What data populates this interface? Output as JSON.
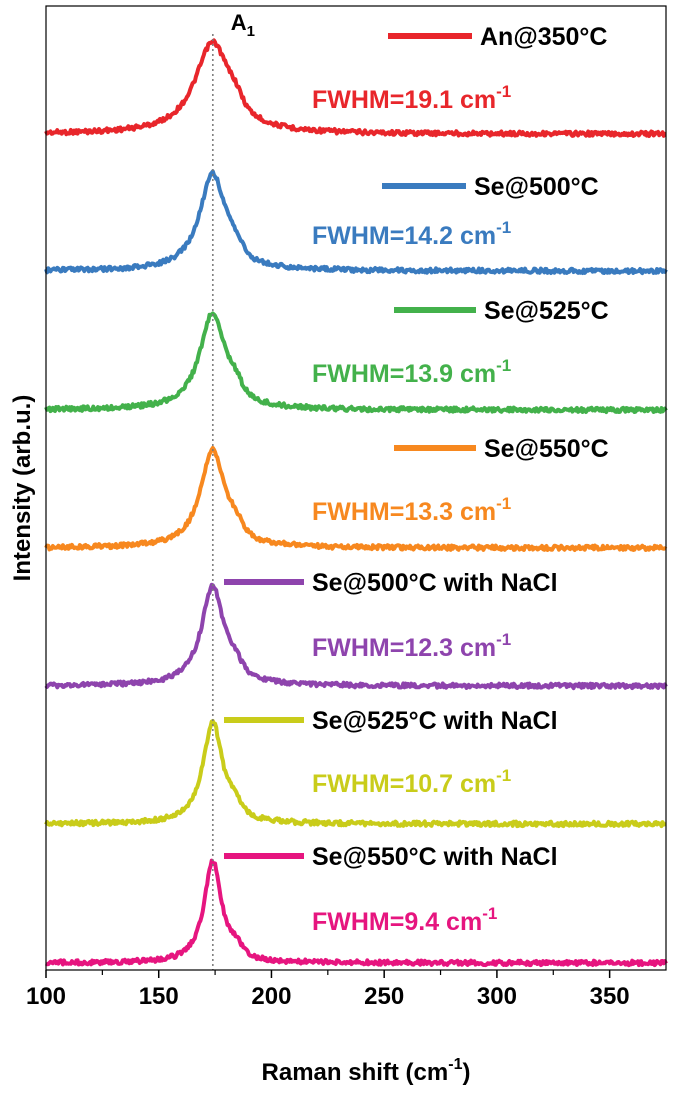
{
  "chart_data": {
    "type": "line",
    "xlabel": "Raman shift (cm",
    "xlabel_sup": "-1",
    "xlabel_close": ")",
    "ylabel": "Intensity (arb.u.)",
    "xlim": [
      100,
      375
    ],
    "x_ticks": [
      100,
      150,
      200,
      250,
      300,
      350
    ],
    "y_ticks_shown": false,
    "peak_marker": {
      "label": "A",
      "label_sub": "1",
      "x": 174,
      "style": "dotted"
    },
    "series": [
      {
        "name": "An@350°C",
        "color": "#e8262b",
        "peak_x": 174,
        "fwhm_text": "FWHM=19.1 cm",
        "fwhm_sup": "-1",
        "fwhm_value": 19.1
      },
      {
        "name": "Se@500°C",
        "color": "#3a7bbf",
        "peak_x": 174,
        "fwhm_text": "FWHM=14.2 cm",
        "fwhm_sup": "-1",
        "fwhm_value": 14.2
      },
      {
        "name": "Se@525°C",
        "color": "#43b14b",
        "peak_x": 174,
        "fwhm_text": "FWHM=13.9 cm",
        "fwhm_sup": "-1",
        "fwhm_value": 13.9
      },
      {
        "name": "Se@550°C",
        "color": "#f7881f",
        "peak_x": 174,
        "fwhm_text": "FWHM=13.3 cm",
        "fwhm_sup": "-1",
        "fwhm_value": 13.3
      },
      {
        "name": "Se@500°C with NaCl",
        "color": "#8e44ad",
        "peak_x": 174,
        "fwhm_text": "FWHM=12.3 cm",
        "fwhm_sup": "-1",
        "fwhm_value": 12.3
      },
      {
        "name": "Se@525°C with NaCl",
        "color": "#c9cc1a",
        "peak_x": 174,
        "fwhm_text": "FWHM=10.7 cm",
        "fwhm_sup": "-1",
        "fwhm_value": 10.7
      },
      {
        "name": "Se@550°C with NaCl",
        "color": "#e6157f",
        "peak_x": 174,
        "fwhm_text": "FWHM=9.4 cm",
        "fwhm_sup": "-1",
        "fwhm_value": 9.4
      }
    ]
  }
}
